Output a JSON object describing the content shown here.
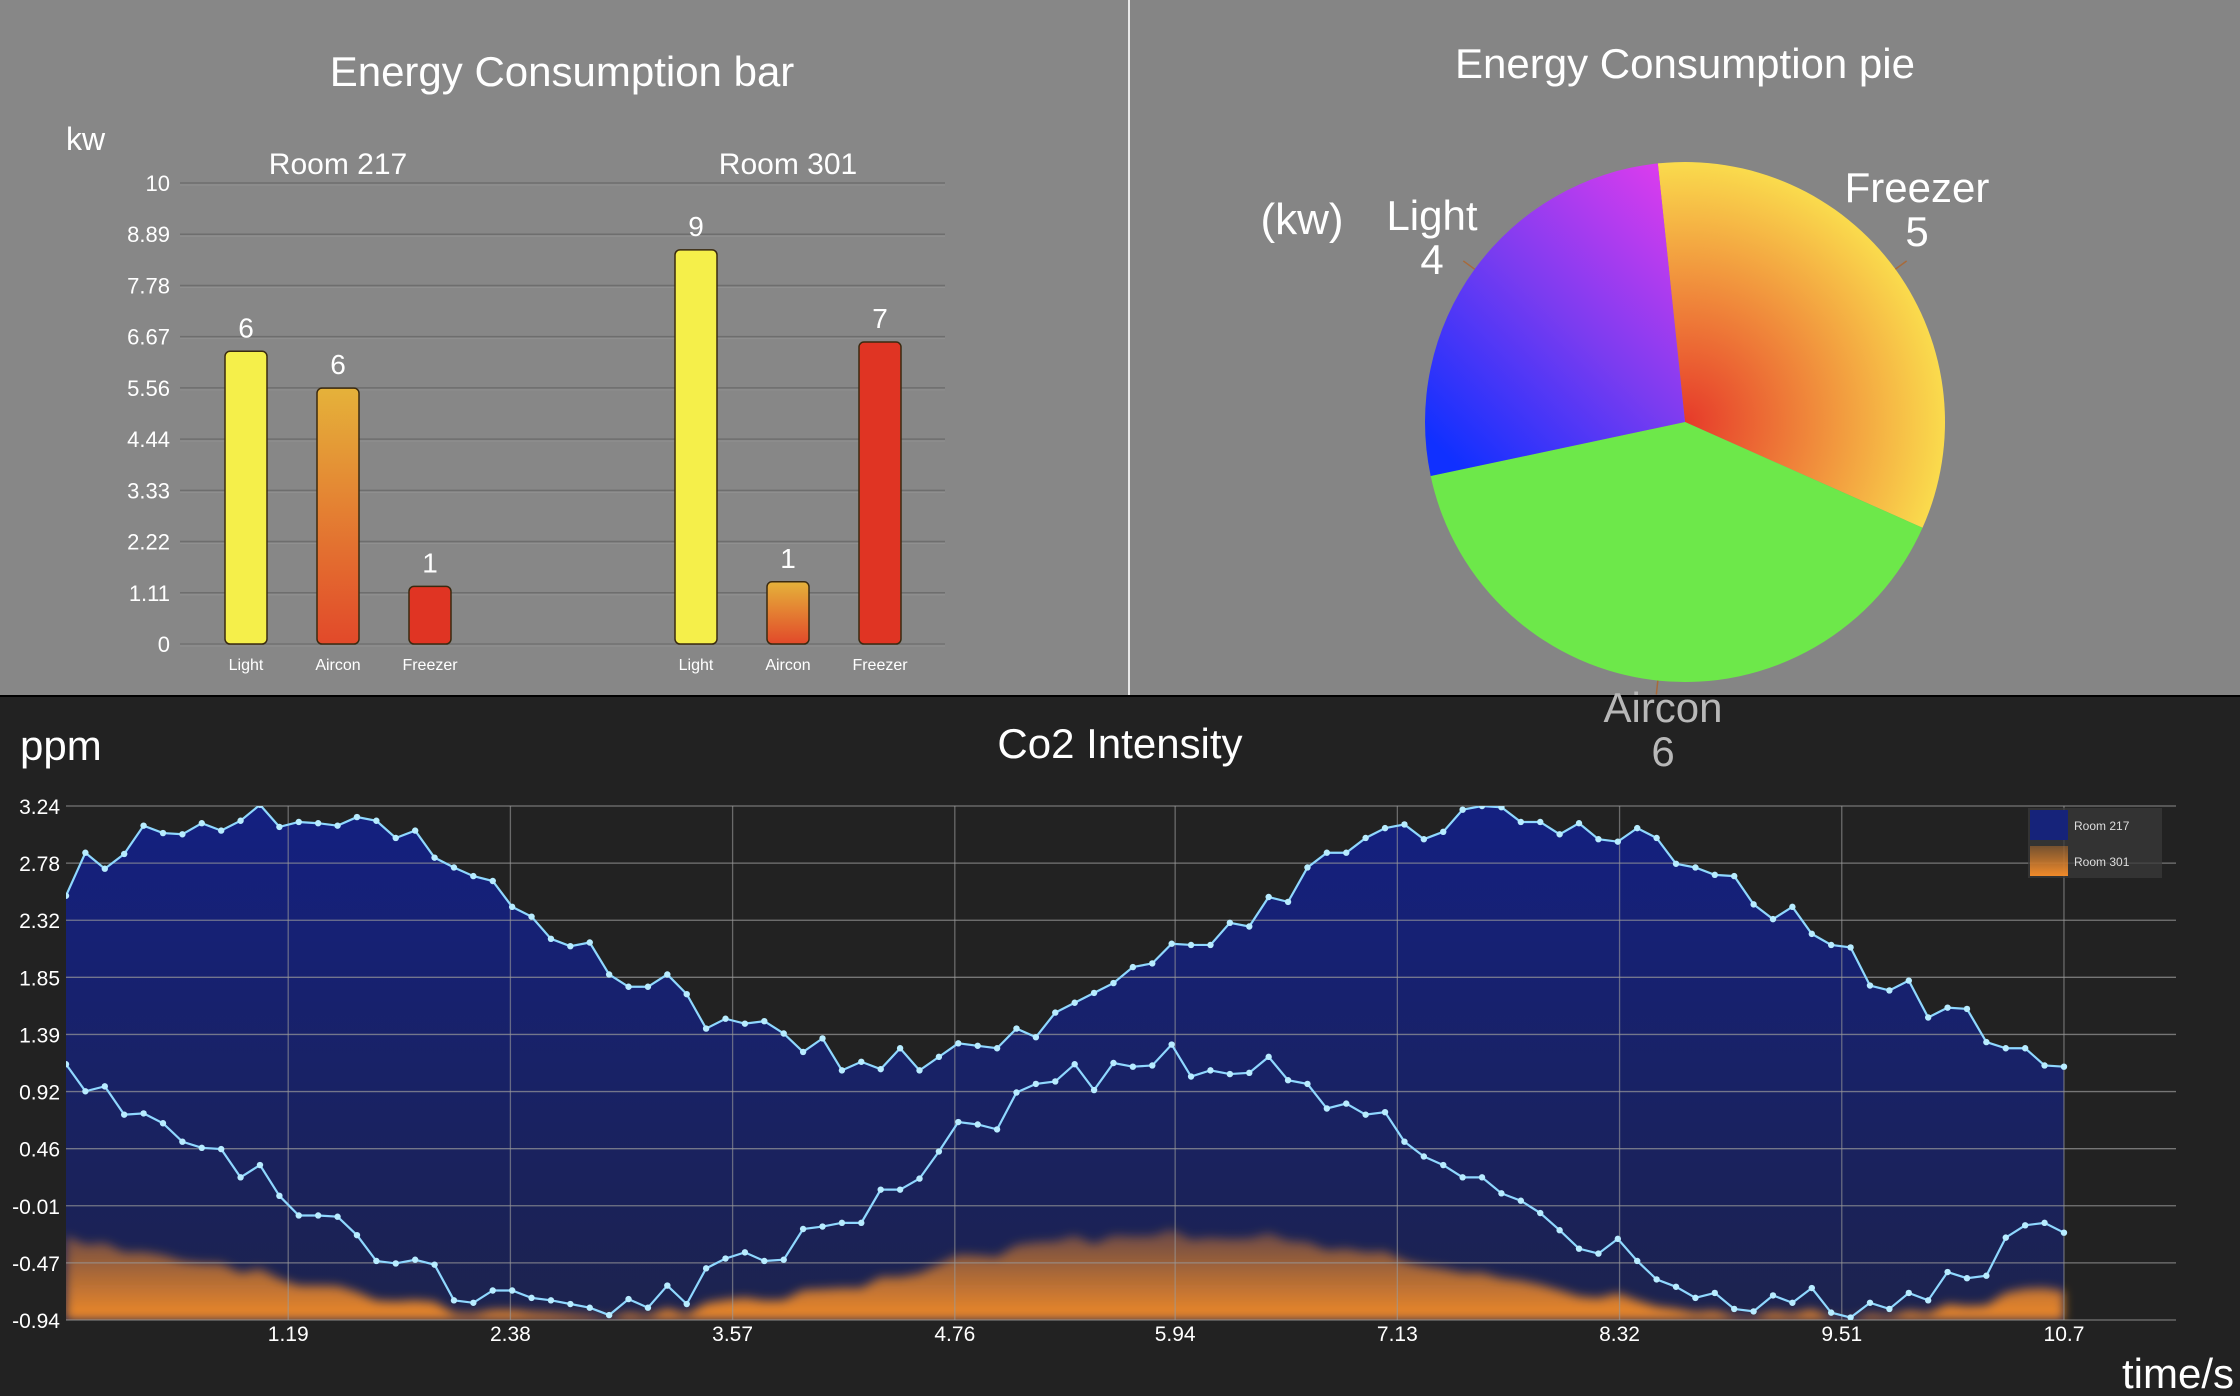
{
  "colors": {
    "top_panel_bg": "#878787",
    "bottom_panel_bg": "#222222",
    "light": "#f5ef4a",
    "aircon_top": "#e5b23a",
    "aircon_bottom": "#e2492a",
    "freezer": "#e03423",
    "pie_freezer": "#f0a03a",
    "pie_aircon": "#6de84a",
    "pie_light": "#8a37ee",
    "line": "#8fd8ff",
    "area_room217": "#16237a",
    "area_room301": "#f08a2a"
  },
  "chart_data": [
    {
      "type": "bar",
      "title": "Energy Consumption bar",
      "ylabel": "kw",
      "ylim": [
        0,
        10
      ],
      "yticks": [
        "0",
        "1.11",
        "2.22",
        "3.33",
        "4.44",
        "5.56",
        "6.67",
        "7.78",
        "8.89",
        "10"
      ],
      "groups": [
        {
          "name": "Room 217",
          "categories": [
            "Light",
            "Aircon",
            "Freezer"
          ],
          "values": [
            6,
            6,
            1
          ],
          "heights": [
            6.35,
            5.55,
            1.25
          ]
        },
        {
          "name": "Room 301",
          "categories": [
            "Light",
            "Aircon",
            "Freezer"
          ],
          "values": [
            9,
            1,
            7
          ],
          "heights": [
            8.55,
            1.35,
            6.55
          ]
        }
      ]
    },
    {
      "type": "pie",
      "title": "Energy Consumption pie",
      "unit_label": "(kw)",
      "slices": [
        {
          "label": "Freezer",
          "value": 5
        },
        {
          "label": "Aircon",
          "value": 6
        },
        {
          "label": "Light",
          "value": 4
        }
      ]
    },
    {
      "type": "area",
      "title": "Co2 Intensity",
      "ylabel": "ppm",
      "xlabel": "time/s",
      "yticks": [
        "-0.94",
        "-0.47",
        "-0.01",
        "0.46",
        "0.92",
        "1.39",
        "1.85",
        "2.32",
        "2.78",
        "3.24"
      ],
      "xticks": [
        "1.19",
        "2.38",
        "3.57",
        "4.76",
        "5.94",
        "7.13",
        "8.32",
        "9.51",
        "10.7"
      ],
      "xlim": [
        0,
        11.3
      ],
      "ylim": [
        -0.94,
        3.24
      ],
      "legend_position": "top-right",
      "series": [
        {
          "name": "Room 217",
          "y": [
            2.51,
            2.86,
            2.73,
            2.85,
            3.08,
            3.02,
            3.01,
            3.1,
            3.04,
            3.12,
            3.25,
            3.07,
            3.11,
            3.1,
            3.08,
            3.15,
            3.12,
            2.98,
            3.04,
            2.82,
            2.74,
            2.67,
            2.63,
            2.42,
            2.34,
            2.16,
            2.1,
            2.13,
            1.87,
            1.77,
            1.77,
            1.87,
            1.71,
            1.43,
            1.51,
            1.47,
            1.49,
            1.39,
            1.24,
            1.35,
            1.09,
            1.16,
            1.1,
            1.27,
            1.09,
            1.2,
            1.31,
            1.29,
            1.27,
            1.43,
            1.36,
            1.56,
            1.64,
            1.72,
            1.8,
            1.93,
            1.96,
            2.12,
            2.11,
            2.11,
            2.29,
            2.26,
            2.5,
            2.46,
            2.74,
            2.86,
            2.86,
            2.98,
            3.06,
            3.09,
            2.97,
            3.03,
            3.21,
            3.24,
            3.23,
            3.11,
            3.11,
            3.01,
            3.1,
            2.97,
            2.95,
            3.06,
            2.98,
            2.77,
            2.74,
            2.68,
            2.67,
            2.44,
            2.32,
            2.42,
            2.2,
            2.11,
            2.09,
            1.78,
            1.74,
            1.82,
            1.52,
            1.6,
            1.59,
            1.32,
            1.27,
            1.27,
            1.13,
            1.12
          ]
        },
        {
          "name": "Room 301",
          "y": [
            1.14,
            0.92,
            0.96,
            0.73,
            0.74,
            0.66,
            0.51,
            0.46,
            0.45,
            0.22,
            0.32,
            0.07,
            -0.09,
            -0.09,
            -0.1,
            -0.25,
            -0.46,
            -0.48,
            -0.45,
            -0.49,
            -0.78,
            -0.8,
            -0.7,
            -0.7,
            -0.76,
            -0.78,
            -0.81,
            -0.84,
            -0.9,
            -0.77,
            -0.84,
            -0.66,
            -0.81,
            -0.52,
            -0.44,
            -0.39,
            -0.46,
            -0.45,
            -0.2,
            -0.18,
            -0.15,
            -0.15,
            0.12,
            0.12,
            0.21,
            0.43,
            0.67,
            0.65,
            0.61,
            0.91,
            0.98,
            1.0,
            1.14,
            0.93,
            1.15,
            1.12,
            1.13,
            1.3,
            1.04,
            1.09,
            1.06,
            1.07,
            1.2,
            1.01,
            0.98,
            0.78,
            0.82,
            0.73,
            0.75,
            0.51,
            0.39,
            0.32,
            0.22,
            0.22,
            0.09,
            0.03,
            -0.07,
            -0.21,
            -0.36,
            -0.4,
            -0.28,
            -0.46,
            -0.61,
            -0.67,
            -0.76,
            -0.72,
            -0.85,
            -0.87,
            -0.74,
            -0.8,
            -0.68,
            -0.88,
            -0.92,
            -0.8,
            -0.85,
            -0.72,
            -0.78,
            -0.55,
            -0.6,
            -0.58,
            -0.27,
            -0.17,
            -0.15,
            -0.23
          ]
        }
      ]
    }
  ]
}
